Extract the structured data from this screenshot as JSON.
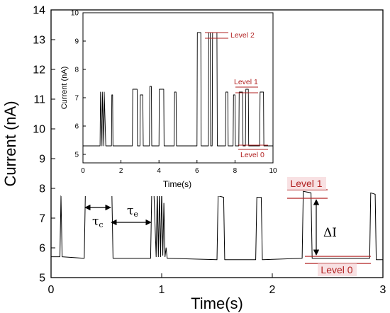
{
  "chart_data": [
    {
      "id": "main",
      "type": "line",
      "xlabel": "Time(s)",
      "ylabel": "Current (nA)",
      "xlim": [
        0,
        3
      ],
      "ylim": [
        5,
        14
      ],
      "xticks": [
        "0",
        "1",
        "2",
        "3"
      ],
      "yticks": [
        "5",
        "6",
        "7",
        "8",
        "9",
        "10",
        "11",
        "12",
        "13",
        "14"
      ],
      "series": [
        {
          "x": [
            0.0,
            0.08,
            0.09,
            0.1,
            0.3,
            0.31,
            0.55,
            0.56,
            0.9,
            0.91,
            0.93,
            0.95,
            0.96,
            0.97,
            0.98,
            0.99,
            1.0,
            1.01,
            1.02,
            1.03,
            1.04,
            1.05,
            1.06,
            1.5,
            1.51,
            1.56,
            1.57,
            1.85,
            1.86,
            1.9,
            1.91,
            2.27,
            2.28,
            2.35,
            2.36,
            2.88,
            2.89,
            2.93,
            2.94,
            3.0
          ],
          "y": [
            5.7,
            5.7,
            7.75,
            5.7,
            5.65,
            7.85,
            7.8,
            5.65,
            5.65,
            7.9,
            7.85,
            5.7,
            7.95,
            5.7,
            7.9,
            5.7,
            7.95,
            5.75,
            7.5,
            5.7,
            6.0,
            5.65,
            5.65,
            5.6,
            7.75,
            7.7,
            5.6,
            5.6,
            7.7,
            7.7,
            5.6,
            5.65,
            7.9,
            7.85,
            5.65,
            5.65,
            7.85,
            7.8,
            5.6,
            5.6
          ]
        }
      ],
      "annotations": [
        {
          "text": "Level 1",
          "y": 7.7
        },
        {
          "text": "Level 0",
          "y": 5.6
        },
        {
          "text": "ΔI",
          "from": 5.6,
          "to": 7.7
        },
        {
          "text": "τc",
          "x_start": 0.3,
          "x_end": 0.55,
          "y": 7.35
        },
        {
          "text": "τe",
          "x_start": 0.55,
          "x_end": 0.91,
          "y": 7.1
        }
      ]
    },
    {
      "id": "inset",
      "type": "line",
      "xlabel": "Time(s)",
      "ylabel": "Current (nA)",
      "xlim": [
        0,
        10
      ],
      "ylim": [
        4.7,
        10
      ],
      "xticks": [
        "0",
        "2",
        "4",
        "6",
        "8",
        "10"
      ],
      "yticks": [
        "5",
        "6",
        "7",
        "8",
        "9",
        "10"
      ],
      "series": [
        {
          "x": [
            0,
            0.9,
            0.92,
            1.0,
            1.02,
            1.1,
            1.12,
            1.2,
            1.5,
            1.52,
            1.56,
            1.58,
            2.6,
            2.62,
            2.85,
            2.87,
            3.0,
            3.02,
            3.15,
            3.17,
            3.5,
            3.52,
            3.6,
            3.62,
            4.0,
            4.02,
            4.25,
            4.27,
            4.8,
            4.82,
            4.9,
            4.92,
            6.0,
            6.02,
            6.2,
            6.22,
            6.6,
            6.62,
            6.7,
            6.72,
            6.8,
            6.82,
            7.05,
            7.07,
            7.5,
            7.52,
            7.62,
            7.64,
            7.9,
            7.92,
            8.0,
            8.02,
            8.2,
            8.22,
            8.4,
            8.42,
            8.55,
            8.57,
            8.7,
            8.72,
            8.85,
            8.87,
            9.3,
            9.32,
            9.5,
            9.52,
            10.0
          ],
          "y": [
            5.3,
            5.3,
            7.2,
            5.3,
            7.2,
            5.3,
            7.2,
            5.3,
            5.3,
            7.1,
            7.1,
            5.3,
            5.3,
            7.3,
            7.3,
            5.3,
            5.3,
            7.1,
            7.1,
            5.3,
            5.3,
            7.4,
            7.4,
            5.3,
            5.3,
            7.3,
            7.3,
            5.3,
            5.3,
            7.2,
            7.2,
            5.3,
            5.3,
            9.3,
            9.3,
            5.3,
            5.3,
            9.3,
            9.3,
            5.3,
            5.3,
            9.3,
            9.3,
            5.3,
            5.3,
            7.2,
            7.2,
            5.3,
            5.3,
            7.1,
            7.1,
            5.3,
            5.3,
            7.2,
            7.2,
            5.3,
            5.3,
            7.3,
            7.3,
            5.3,
            5.3,
            5.3,
            5.3,
            7.2,
            7.2,
            5.3,
            5.3
          ]
        }
      ],
      "annotations": [
        {
          "text": "Level 2",
          "y": 9.3
        },
        {
          "text": "Level 1",
          "y": 7.2
        },
        {
          "text": "Level 0",
          "y": 5.3
        }
      ]
    }
  ]
}
